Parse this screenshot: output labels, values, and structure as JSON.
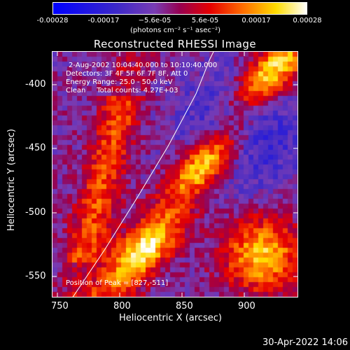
{
  "colorbar": {
    "tick_labels": [
      "-0.00028",
      "-0.00017",
      "−5.6e-05",
      "5.6e-05",
      "0.00017",
      "0.00028"
    ],
    "units": "(photons cm⁻² s⁻¹ asec⁻²)"
  },
  "title": "Reconstructed RHESSI Image",
  "info": {
    "time_range": "2-Aug-2002 10:04:40.000 to 10:10:40.000",
    "detectors": "Detectors: 3F 4F 5F 6F 7F 8F, Att 0",
    "energy_range": "Energy Range: 25.0 - 50.0 keV",
    "method_counts": "Clean     Total counts: 4.27E+03",
    "peak": "Position of Peak = [827,-511]"
  },
  "axes": {
    "xlabel": "Heliocentric X (arcsec)",
    "ylabel": "Heliocentric Y (arcsec)",
    "x_ticks": [
      "750",
      "800",
      "850",
      "900"
    ],
    "y_ticks": [
      "-400",
      "-450",
      "-500",
      "-550"
    ],
    "xlim": [
      746,
      943
    ],
    "ylim": [
      -568,
      -375
    ]
  },
  "timestamp": "30-Apr-2022 14:06"
}
